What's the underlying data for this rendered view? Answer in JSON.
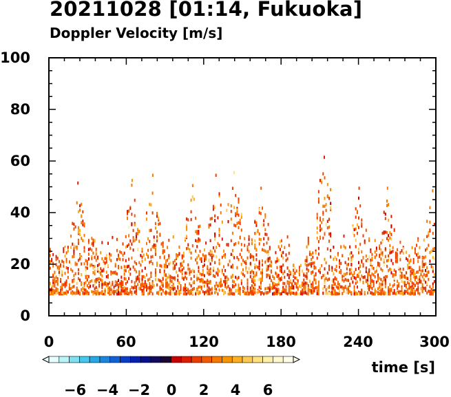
{
  "chart_data": {
    "type": "scatter",
    "title": "20211028 [01:14, Fukuoka]",
    "subtitle": "Doppler Velocity [m/s]",
    "xlabel": "time [s]",
    "ylabel": "",
    "xlim": [
      0,
      300
    ],
    "ylim": [
      0,
      100
    ],
    "x_ticks": [
      "0",
      "60",
      "120",
      "180",
      "240",
      "300"
    ],
    "y_ticks": [
      "0",
      "20",
      "40",
      "60",
      "80",
      "100"
    ],
    "grid": false,
    "plot_kind": "time-height Doppler velocity scatter (radar echoes)",
    "echo_base_height": 8,
    "echo_typical_top": 28,
    "echo_max_height": 61,
    "velocity_range": [
      -7,
      7
    ],
    "dominant_velocity_range": [
      0,
      4
    ],
    "tall_echo_columns": [
      {
        "time": 22,
        "top": 51
      },
      {
        "time": 64,
        "top": 52
      },
      {
        "time": 80,
        "top": 54
      },
      {
        "time": 111,
        "top": 50
      },
      {
        "time": 129,
        "top": 54
      },
      {
        "time": 143,
        "top": 55
      },
      {
        "time": 164,
        "top": 49
      },
      {
        "time": 213,
        "top": 61
      },
      {
        "time": 240,
        "top": 49
      },
      {
        "time": 262,
        "top": 49
      },
      {
        "time": 297,
        "top": 48
      }
    ],
    "colorbar": {
      "labels": [
        "−6",
        "−4",
        "−2",
        "0",
        "2",
        "4",
        "6"
      ],
      "min": -7,
      "max": 7,
      "colors": [
        "#e8ffff",
        "#b8f4f8",
        "#7ee0f0",
        "#46c8ec",
        "#26a8e6",
        "#1a86de",
        "#1060d6",
        "#0a3cc8",
        "#0820b0",
        "#0a108a",
        "#140a5c",
        "#1a0830",
        "#c80000",
        "#de1c00",
        "#ee3c00",
        "#f45a00",
        "#f87800",
        "#fa9400",
        "#fcb020",
        "#fcca50",
        "#fde080",
        "#fef0aa",
        "#fff8cc",
        "#fffce8"
      ]
    }
  }
}
